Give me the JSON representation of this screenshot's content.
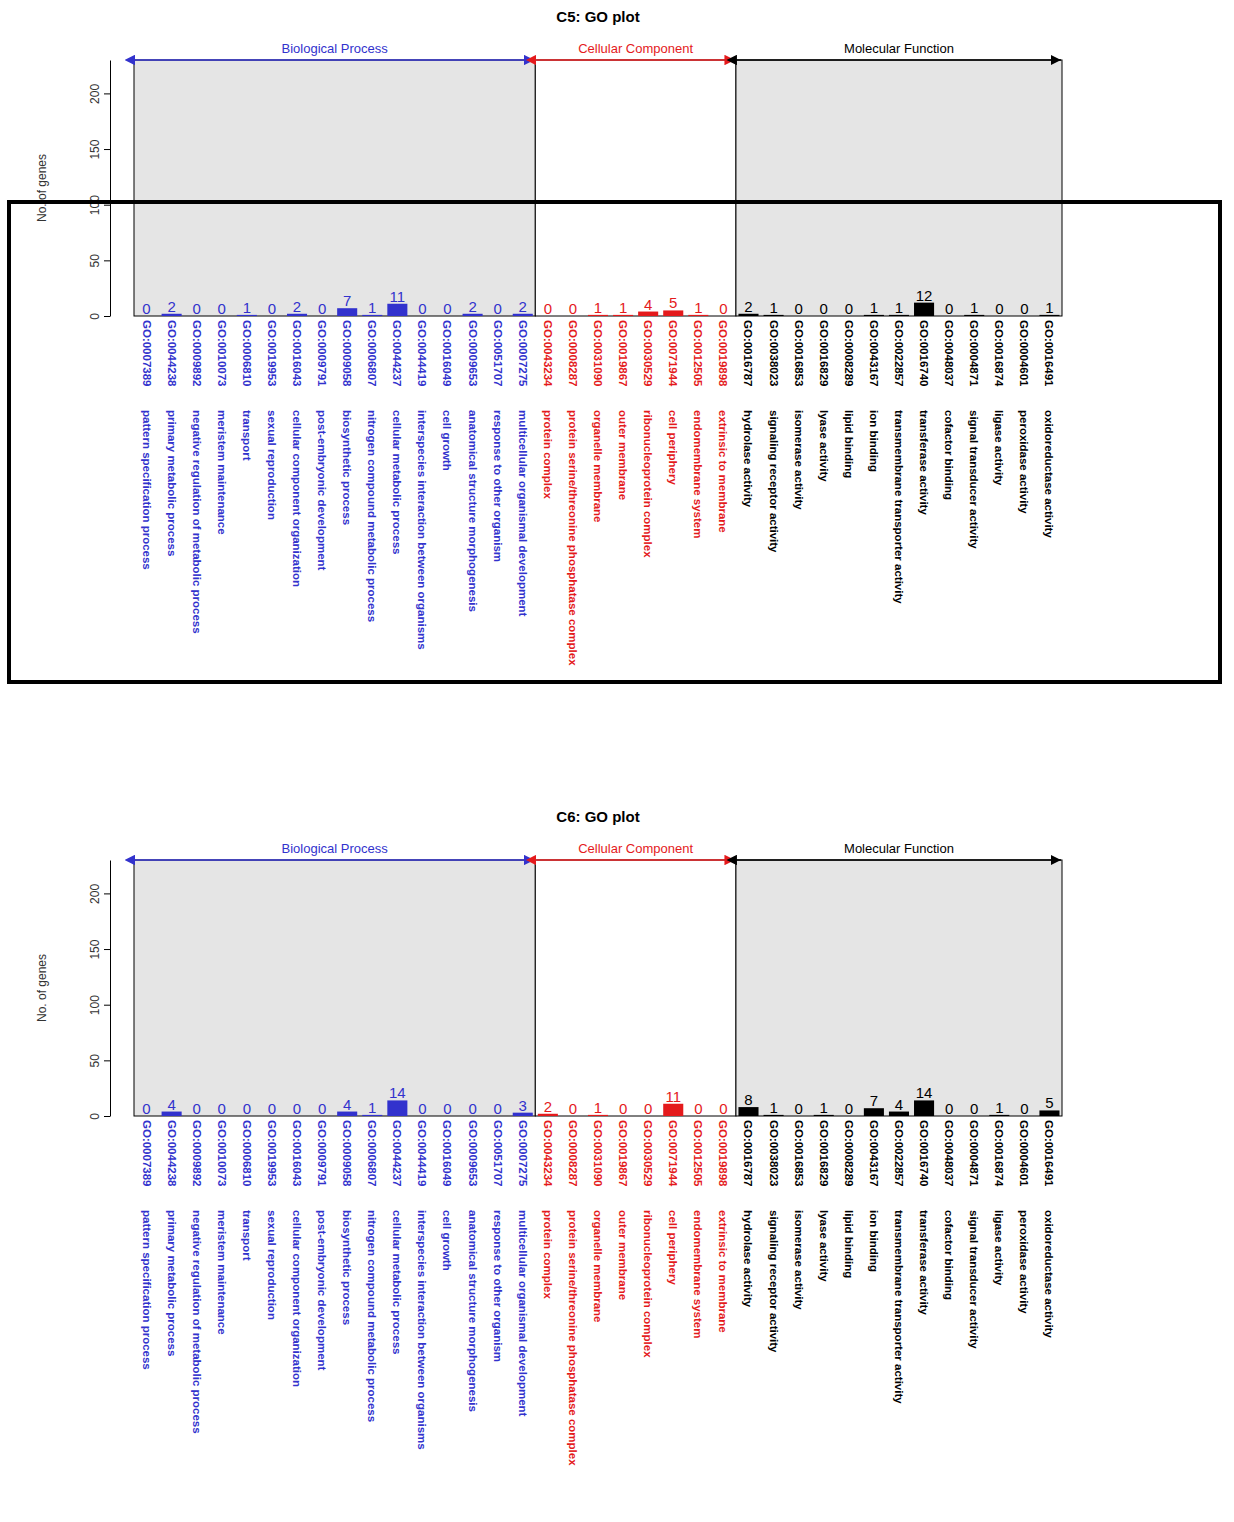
{
  "chart_data": [
    {
      "type": "bar",
      "title": "C5: GO plot",
      "y_label": "No. of genes",
      "categories": [
        "GO:0007389",
        "GO:0044238",
        "GO:0009892",
        "GO:0010073",
        "GO:0006810",
        "GO:0019953",
        "GO:0016043",
        "GO:0009791",
        "GO:0009058",
        "GO:0006807",
        "GO:0044237",
        "GO:0044419",
        "GO:0016049",
        "GO:0009653",
        "GO:0051707",
        "GO:0007275",
        "GO:0043234",
        "GO:0008287",
        "GO:0031090",
        "GO:0019867",
        "GO:0030529",
        "GO:0071944",
        "GO:0012505",
        "GO:0019898",
        "GO:0016787",
        "GO:0038023",
        "GO:0016853",
        "GO:0016829",
        "GO:0008289",
        "GO:0043167",
        "GO:0022857",
        "GO:0016740",
        "GO:0048037",
        "GO:0004871",
        "GO:0016874",
        "GO:0004601",
        "GO:0016491"
      ],
      "category_names": [
        "pattern specification process",
        "primary metabolic process",
        "negative regulation of metabolic process",
        "meristem maintenance",
        "transport",
        "sexual reproduction",
        "cellular component organization",
        "post-embryonic development",
        "biosynthetic process",
        "nitrogen compound metabolic process",
        "cellular metabolic process",
        "interspecies interaction between organisms",
        "cell growth",
        "anatomical structure morphogenesis",
        "response to other organism",
        "multicellular organismal development",
        "protein complex",
        "protein serine/threonine phosphatase complex",
        "organelle membrane",
        "outer membrane",
        "ribonucleoprotein complex",
        "cell periphery",
        "endomembrane system",
        "extrinsic to membrane",
        "hydrolase activity",
        "signaling receptor activity",
        "isomerase activity",
        "lyase activity",
        "lipid binding",
        "ion binding",
        "transmembrane transporter activity",
        "transferase activity",
        "cofactor binding",
        "signal transducer activity",
        "ligase activity",
        "peroxidase activity",
        "oxidoreductase activity"
      ],
      "groups": [
        {
          "name": "Biological Process",
          "color": "#3232cd",
          "from": "GO:0007389",
          "to": "GO:0007275"
        },
        {
          "name": "Cellular Component",
          "color": "#e41a1c",
          "from": "GO:0043234",
          "to": "GO:0019898"
        },
        {
          "name": "Molecular Function",
          "color": "#000000",
          "from": "GO:0016787",
          "to": "GO:0016491"
        }
      ],
      "values": [
        0,
        2,
        0,
        0,
        1,
        0,
        2,
        0,
        7,
        1,
        11,
        0,
        0,
        2,
        0,
        2,
        0,
        0,
        1,
        1,
        4,
        5,
        1,
        0,
        2,
        1,
        0,
        0,
        0,
        1,
        1,
        12,
        0,
        1,
        0,
        0,
        1
      ],
      "colors": [
        "#3232cd",
        "#3232cd",
        "#3232cd",
        "#3232cd",
        "#3232cd",
        "#3232cd",
        "#3232cd",
        "#3232cd",
        "#3232cd",
        "#3232cd",
        "#3232cd",
        "#3232cd",
        "#3232cd",
        "#3232cd",
        "#3232cd",
        "#3232cd",
        "#e41a1c",
        "#e41a1c",
        "#e41a1c",
        "#e41a1c",
        "#e41a1c",
        "#e41a1c",
        "#e41a1c",
        "#e41a1c",
        "#000000",
        "#000000",
        "#000000",
        "#000000",
        "#000000",
        "#000000",
        "#000000",
        "#000000",
        "#000000",
        "#000000",
        "#000000",
        "#000000",
        "#000000"
      ],
      "ylim": [
        0,
        230
      ],
      "yticks": [
        0,
        50,
        100,
        150,
        200
      ],
      "data_labels": true
    },
    {
      "type": "bar",
      "title": "C6: GO plot",
      "y_label": "No. of genes",
      "categories": [
        "GO:0007389",
        "GO:0044238",
        "GO:0009892",
        "GO:0010073",
        "GO:0006810",
        "GO:0019953",
        "GO:0016043",
        "GO:0009791",
        "GO:0009058",
        "GO:0006807",
        "GO:0044237",
        "GO:0044419",
        "GO:0016049",
        "GO:0009653",
        "GO:0051707",
        "GO:0007275",
        "GO:0043234",
        "GO:0008287",
        "GO:0031090",
        "GO:0019867",
        "GO:0030529",
        "GO:0071944",
        "GO:0012505",
        "GO:0019898",
        "GO:0016787",
        "GO:0038023",
        "GO:0016853",
        "GO:0016829",
        "GO:0008289",
        "GO:0043167",
        "GO:0022857",
        "GO:0016740",
        "GO:0048037",
        "GO:0004871",
        "GO:0016874",
        "GO:0004601",
        "GO:0016491"
      ],
      "category_names": [
        "pattern specification process",
        "primary metabolic process",
        "negative regulation of metabolic process",
        "meristem maintenance",
        "transport",
        "sexual reproduction",
        "cellular component organization",
        "post-embryonic development",
        "biosynthetic process",
        "nitrogen compound metabolic process",
        "cellular metabolic process",
        "interspecies interaction between organisms",
        "cell growth",
        "anatomical structure morphogenesis",
        "response to other organism",
        "multicellular organismal development",
        "protein complex",
        "protein serine/threonine phosphatase complex",
        "organelle membrane",
        "outer membrane",
        "ribonucleoprotein complex",
        "cell periphery",
        "endomembrane system",
        "extrinsic to membrane",
        "hydrolase activity",
        "signaling receptor activity",
        "isomerase activity",
        "lyase activity",
        "lipid binding",
        "ion binding",
        "transmembrane transporter activity",
        "transferase activity",
        "cofactor binding",
        "signal transducer activity",
        "ligase activity",
        "peroxidase activity",
        "oxidoreductase activity"
      ],
      "groups": [
        {
          "name": "Biological Process",
          "color": "#3232cd",
          "from": "GO:0007389",
          "to": "GO:0007275"
        },
        {
          "name": "Cellular Component",
          "color": "#e41a1c",
          "from": "GO:0043234",
          "to": "GO:0019898"
        },
        {
          "name": "Molecular Function",
          "color": "#000000",
          "from": "GO:0016787",
          "to": "GO:0016491"
        }
      ],
      "values": [
        0,
        4,
        0,
        0,
        0,
        0,
        0,
        0,
        4,
        1,
        14,
        0,
        0,
        0,
        0,
        3,
        2,
        0,
        1,
        0,
        0,
        11,
        0,
        0,
        8,
        1,
        0,
        1,
        0,
        7,
        4,
        14,
        0,
        0,
        1,
        0,
        5
      ],
      "colors": [
        "#3232cd",
        "#3232cd",
        "#3232cd",
        "#3232cd",
        "#3232cd",
        "#3232cd",
        "#3232cd",
        "#3232cd",
        "#3232cd",
        "#3232cd",
        "#3232cd",
        "#3232cd",
        "#3232cd",
        "#3232cd",
        "#3232cd",
        "#3232cd",
        "#e41a1c",
        "#e41a1c",
        "#e41a1c",
        "#e41a1c",
        "#e41a1c",
        "#e41a1c",
        "#e41a1c",
        "#e41a1c",
        "#000000",
        "#000000",
        "#000000",
        "#000000",
        "#000000",
        "#000000",
        "#000000",
        "#000000",
        "#000000",
        "#000000",
        "#000000",
        "#000000",
        "#000000"
      ],
      "ylim": [
        0,
        230
      ],
      "yticks": [
        0,
        50,
        100,
        150,
        200
      ],
      "data_labels": true
    }
  ]
}
